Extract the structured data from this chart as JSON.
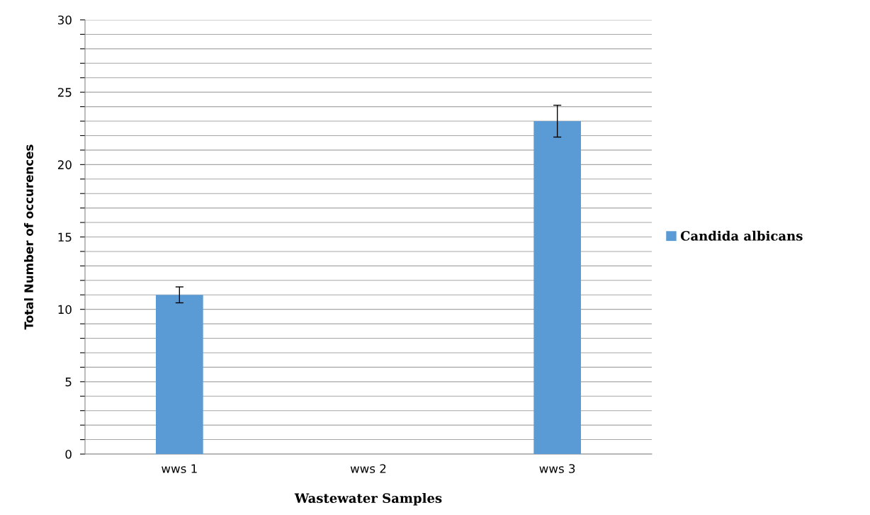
{
  "chart_data": {
    "type": "bar",
    "xlabel": "Wastewater Samples",
    "ylabel": "Total Number of occurences",
    "categories": [
      "wws 1",
      "wws 2",
      "wws 3"
    ],
    "series": [
      {
        "name": "Candida albicans",
        "color": "#5b9bd5",
        "values": [
          11,
          0,
          23
        ],
        "errors": [
          0.55,
          null,
          1.1
        ]
      }
    ],
    "ylim": [
      0,
      30
    ],
    "yticks": [
      0,
      {
        "value": 1,
        "label": null
      },
      {
        "value": 2,
        "label": null
      },
      {
        "value": 3,
        "label": null
      },
      {
        "value": 4,
        "label": null
      },
      5,
      {
        "value": 6,
        "label": null
      },
      {
        "value": 7,
        "label": null
      },
      {
        "value": 8,
        "label": null
      },
      {
        "value": 9,
        "label": null
      },
      10,
      {
        "value": 11,
        "label": null
      },
      {
        "value": 12,
        "label": null
      },
      {
        "value": 13,
        "label": null
      },
      {
        "value": 14,
        "label": null
      },
      15,
      {
        "value": 16,
        "label": null
      },
      {
        "value": 17,
        "label": null
      },
      {
        "value": 18,
        "label": null
      },
      {
        "value": 19,
        "label": null
      },
      20,
      {
        "value": 21,
        "label": null
      },
      {
        "value": 22,
        "label": null
      },
      {
        "value": 23,
        "label": null
      },
      {
        "value": 24,
        "label": null
      },
      25,
      {
        "value": 26,
        "label": null
      },
      {
        "value": 27,
        "label": null
      },
      {
        "value": 28,
        "label": null
      },
      {
        "value": 29,
        "label": null
      },
      30
    ],
    "grid": "y",
    "legend": "right"
  }
}
